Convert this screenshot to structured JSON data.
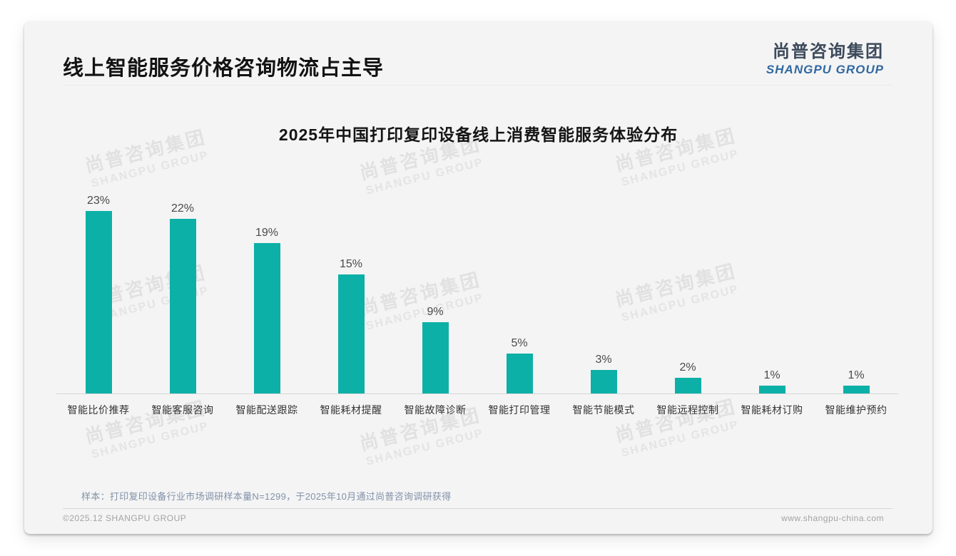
{
  "header": {
    "title": "线上智能服务价格咨询物流占主导"
  },
  "logo": {
    "cn": "尚普咨询集团",
    "en": "SHANGPU GROUP"
  },
  "watermark": {
    "cn": "尚普咨询集团",
    "en": "SHANGPU GROUP"
  },
  "chart_data": {
    "type": "bar",
    "title": "2025年中国打印复印设备线上消费智能服务体验分布",
    "categories": [
      "智能比价推荐",
      "智能客服咨询",
      "智能配送跟踪",
      "智能耗材提醒",
      "智能故障诊断",
      "智能打印管理",
      "智能节能模式",
      "智能远程控制",
      "智能耗材订购",
      "智能维护预约"
    ],
    "values": [
      23,
      22,
      19,
      15,
      9,
      5,
      3,
      2,
      1,
      1
    ],
    "unit": "%",
    "value_labels": [
      "23%",
      "22%",
      "19%",
      "15%",
      "9%",
      "5%",
      "3%",
      "2%",
      "1%",
      "1%"
    ],
    "ylim": [
      0,
      25
    ],
    "grid": false,
    "legend": false,
    "bar_color": "#0cb0a6"
  },
  "footnote": "样本：打印复印设备行业市场调研样本量N=1299，于2025年10月通过尚普咨询调研获得",
  "footer": {
    "left": "©2025.12 SHANGPU GROUP",
    "right": "www.shangpu-china.com"
  },
  "colors": {
    "bar": "#0cb0a6",
    "card_background": "#f4f4f5",
    "logo_cn": "#3c4a5b",
    "logo_en": "#31689f",
    "footnote_text": "#8292a8"
  }
}
